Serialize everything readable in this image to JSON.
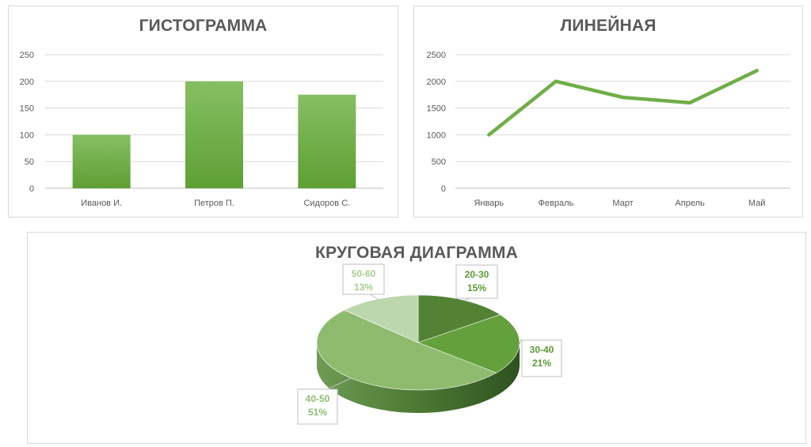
{
  "charts": {
    "bar": {
      "title": "ГИСТОГРАММА",
      "color": "#70ad47"
    },
    "line": {
      "title": "ЛИНЕЙНАЯ",
      "color": "#70ad47"
    },
    "pie": {
      "title": "КРУГОВАЯ ДИАГРАММА",
      "colors": [
        "#548235",
        "#64a03c",
        "#8ebb6e",
        "#bcd6ad"
      ]
    }
  },
  "chart_data": [
    {
      "type": "bar",
      "title": "ГИСТОГРАММА",
      "categories": [
        "Иванов И.",
        "Петров П.",
        "Сидоров С."
      ],
      "values": [
        100,
        200,
        175
      ],
      "yticks": [
        0,
        50,
        100,
        150,
        200,
        250
      ],
      "ylim": [
        0,
        250
      ],
      "grid": true,
      "legend": "none"
    },
    {
      "type": "line",
      "title": "ЛИНЕЙНАЯ",
      "categories": [
        "Январь",
        "Февраль",
        "Март",
        "Апрель",
        "Май"
      ],
      "values": [
        1000,
        2000,
        1700,
        1600,
        2200
      ],
      "yticks": [
        0,
        500,
        1000,
        1500,
        2000,
        2500
      ],
      "ylim": [
        0,
        2500
      ],
      "grid": true,
      "legend": "none"
    },
    {
      "type": "pie",
      "title": "КРУГОВАЯ ДИАГРАММА",
      "categories": [
        "20-30",
        "30-40",
        "40-50",
        "50-60"
      ],
      "values": [
        15,
        21,
        51,
        13
      ],
      "value_labels": [
        "15%",
        "21%",
        "51%",
        "13%"
      ],
      "style": "3d",
      "legend": "none"
    }
  ]
}
